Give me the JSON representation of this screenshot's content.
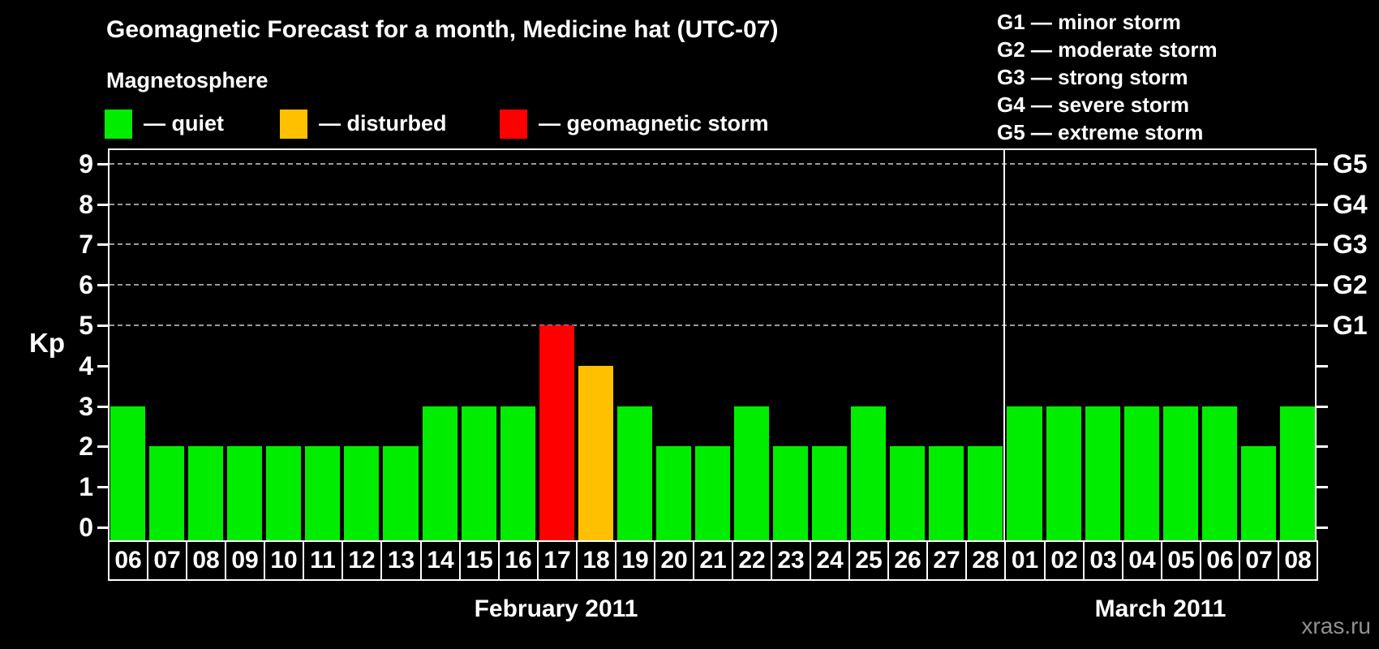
{
  "watermark": "xras.ru",
  "magnetosphere_legend": {
    "title": "Magnetosphere",
    "items": [
      {
        "status": "quiet",
        "label": "— quiet"
      },
      {
        "status": "disturbed",
        "label": "— disturbed"
      },
      {
        "status": "storm",
        "label": "— geomagnetic storm"
      }
    ]
  },
  "storm_scale_legend": [
    "G1 — minor storm",
    "G2 — moderate storm",
    "G3 — strong storm",
    "G4 — severe storm",
    "G5 — extreme storm"
  ],
  "colors": {
    "quiet": "#00ED00",
    "disturbed": "#FFC000",
    "storm": "#FF0000",
    "grid": "#9A9A9A",
    "axis": "#FFFFFF",
    "background": "#000000",
    "watermark": "#919191"
  },
  "chart_data": {
    "type": "bar",
    "title": "Geomagnetic Forecast for a month, Medicine hat (UTC-07)",
    "xlabel": "",
    "ylabel": "Kp",
    "ylim": [
      0,
      9
    ],
    "yticks": [
      0,
      1,
      2,
      3,
      4,
      5,
      6,
      7,
      8,
      9
    ],
    "gridlines_at": [
      5,
      6,
      7,
      8,
      9
    ],
    "grid": "dashed, horizontal, levels 5-9 only",
    "legend_position": "top",
    "right_axis": {
      "labels": [
        {
          "kp": 5,
          "text": "G1"
        },
        {
          "kp": 6,
          "text": "G2"
        },
        {
          "kp": 7,
          "text": "G3"
        },
        {
          "kp": 8,
          "text": "G4"
        },
        {
          "kp": 9,
          "text": "G5"
        }
      ]
    },
    "months": [
      {
        "label": "February 2011",
        "days": [
          {
            "day": "06",
            "kp": 3,
            "status": "quiet"
          },
          {
            "day": "07",
            "kp": 2,
            "status": "quiet"
          },
          {
            "day": "08",
            "kp": 2,
            "status": "quiet"
          },
          {
            "day": "09",
            "kp": 2,
            "status": "quiet"
          },
          {
            "day": "10",
            "kp": 2,
            "status": "quiet"
          },
          {
            "day": "11",
            "kp": 2,
            "status": "quiet"
          },
          {
            "day": "12",
            "kp": 2,
            "status": "quiet"
          },
          {
            "day": "13",
            "kp": 2,
            "status": "quiet"
          },
          {
            "day": "14",
            "kp": 3,
            "status": "quiet"
          },
          {
            "day": "15",
            "kp": 3,
            "status": "quiet"
          },
          {
            "day": "16",
            "kp": 3,
            "status": "quiet"
          },
          {
            "day": "17",
            "kp": 5,
            "status": "storm"
          },
          {
            "day": "18",
            "kp": 4,
            "status": "disturbed"
          },
          {
            "day": "19",
            "kp": 3,
            "status": "quiet"
          },
          {
            "day": "20",
            "kp": 2,
            "status": "quiet"
          },
          {
            "day": "21",
            "kp": 2,
            "status": "quiet"
          },
          {
            "day": "22",
            "kp": 3,
            "status": "quiet"
          },
          {
            "day": "23",
            "kp": 2,
            "status": "quiet"
          },
          {
            "day": "24",
            "kp": 2,
            "status": "quiet"
          },
          {
            "day": "25",
            "kp": 3,
            "status": "quiet"
          },
          {
            "day": "26",
            "kp": 2,
            "status": "quiet"
          },
          {
            "day": "27",
            "kp": 2,
            "status": "quiet"
          },
          {
            "day": "28",
            "kp": 2,
            "status": "quiet"
          }
        ]
      },
      {
        "label": "March 2011",
        "days": [
          {
            "day": "01",
            "kp": 3,
            "status": "quiet"
          },
          {
            "day": "02",
            "kp": 3,
            "status": "quiet"
          },
          {
            "day": "03",
            "kp": 3,
            "status": "quiet"
          },
          {
            "day": "04",
            "kp": 3,
            "status": "quiet"
          },
          {
            "day": "05",
            "kp": 3,
            "status": "quiet"
          },
          {
            "day": "06",
            "kp": 3,
            "status": "quiet"
          },
          {
            "day": "07",
            "kp": 2,
            "status": "quiet"
          },
          {
            "day": "08",
            "kp": 3,
            "status": "quiet"
          }
        ]
      }
    ]
  }
}
